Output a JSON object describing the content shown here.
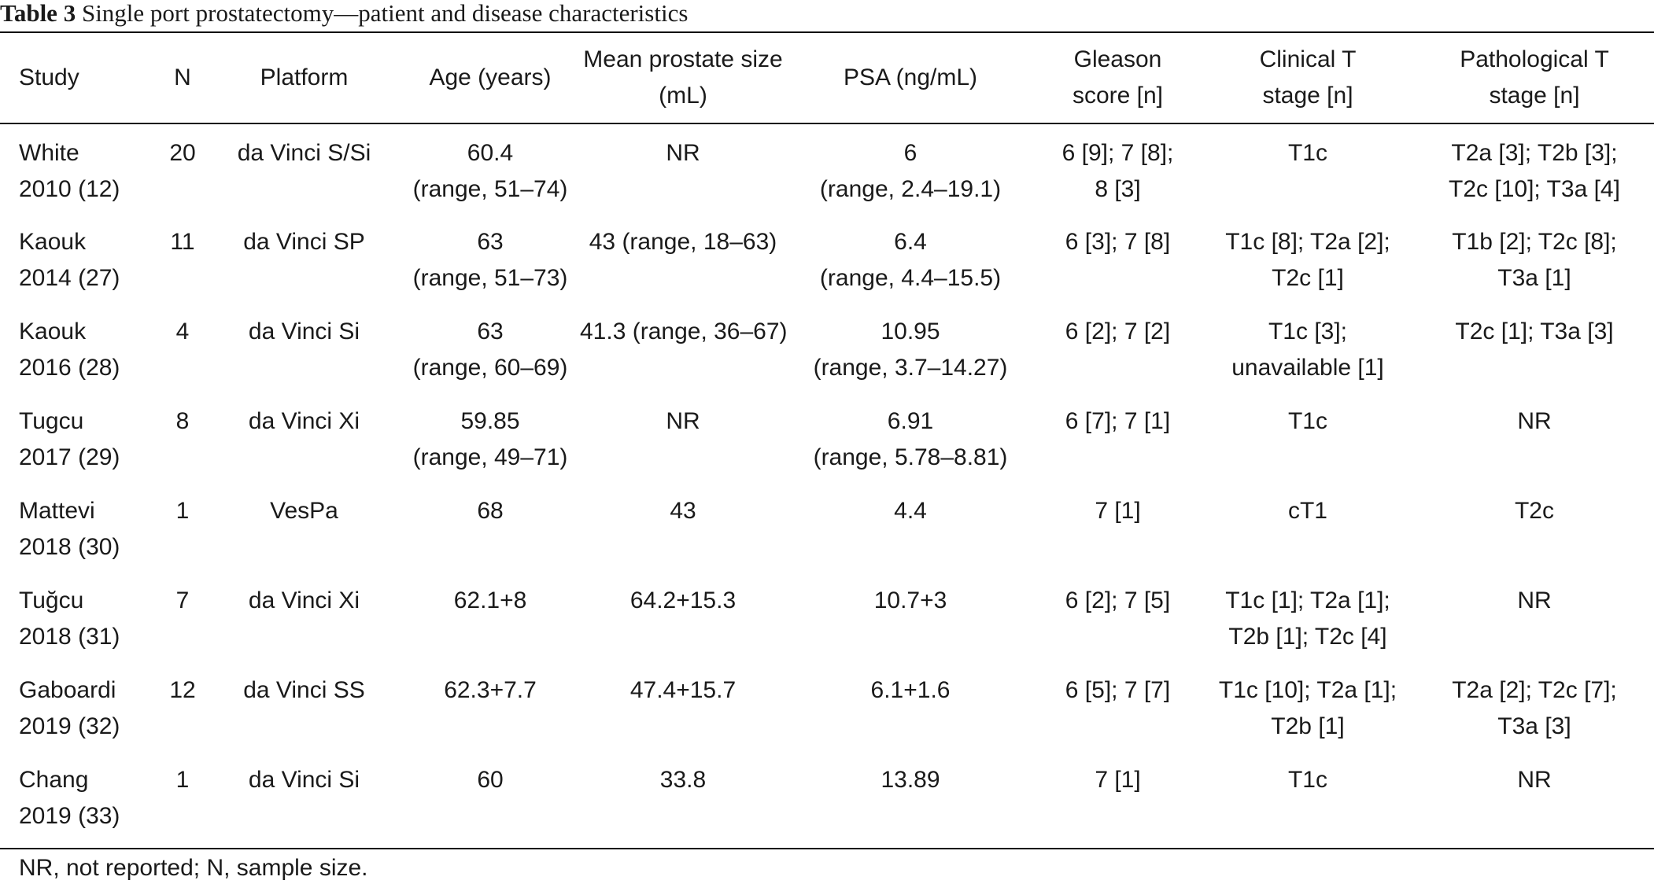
{
  "caption": {
    "label": "Table 3",
    "text": "Single port prostatectomy—patient and disease characteristics"
  },
  "headers": [
    [
      "Study"
    ],
    [
      "N"
    ],
    [
      "Platform"
    ],
    [
      "Age (years)"
    ],
    [
      "Mean prostate size",
      "(mL)"
    ],
    [
      "PSA (ng/mL)"
    ],
    [
      "Gleason",
      "score [n]"
    ],
    [
      "Clinical T",
      "stage [n]"
    ],
    [
      "Pathological T",
      "stage [n]"
    ]
  ],
  "rows": [
    [
      [
        "White",
        "2010 (12)"
      ],
      [
        "20"
      ],
      [
        "da Vinci S/Si"
      ],
      [
        "60.4",
        "(range, 51–74)"
      ],
      [
        "NR"
      ],
      [
        "6",
        "(range, 2.4–19.1)"
      ],
      [
        "6 [9]; 7 [8];",
        "8 [3]"
      ],
      [
        "T1c"
      ],
      [
        "T2a [3]; T2b [3];",
        "T2c [10]; T3a [4]"
      ]
    ],
    [
      [
        "Kaouk",
        "2014 (27)"
      ],
      [
        "11"
      ],
      [
        "da Vinci SP"
      ],
      [
        "63",
        "(range, 51–73)"
      ],
      [
        "43 (range, 18–63)"
      ],
      [
        "6.4",
        "(range, 4.4–15.5)"
      ],
      [
        "6 [3]; 7 [8]"
      ],
      [
        "T1c [8]; T2a [2];",
        "T2c [1]"
      ],
      [
        "T1b [2]; T2c [8];",
        "T3a [1]"
      ]
    ],
    [
      [
        "Kaouk",
        "2016 (28)"
      ],
      [
        "4"
      ],
      [
        "da Vinci Si"
      ],
      [
        "63",
        "(range, 60–69)"
      ],
      [
        "41.3 (range, 36–67)"
      ],
      [
        "10.95",
        "(range, 3.7–14.27)"
      ],
      [
        "6 [2]; 7 [2]"
      ],
      [
        "T1c [3];",
        "unavailable [1]"
      ],
      [
        "T2c [1]; T3a [3]"
      ]
    ],
    [
      [
        "Tugcu",
        "2017 (29)"
      ],
      [
        "8"
      ],
      [
        "da Vinci Xi"
      ],
      [
        "59.85",
        "(range, 49–71)"
      ],
      [
        "NR"
      ],
      [
        "6.91",
        "(range, 5.78–8.81)"
      ],
      [
        "6 [7]; 7 [1]"
      ],
      [
        "T1c"
      ],
      [
        "NR"
      ]
    ],
    [
      [
        "Mattevi",
        "2018 (30)"
      ],
      [
        "1"
      ],
      [
        "VesPa"
      ],
      [
        "68"
      ],
      [
        "43"
      ],
      [
        "4.4"
      ],
      [
        "7 [1]"
      ],
      [
        "cT1"
      ],
      [
        "T2c"
      ]
    ],
    [
      [
        "Tuğcu",
        "2018 (31)"
      ],
      [
        "7"
      ],
      [
        "da Vinci Xi"
      ],
      [
        "62.1+8"
      ],
      [
        "64.2+15.3"
      ],
      [
        "10.7+3"
      ],
      [
        "6 [2]; 7 [5]"
      ],
      [
        "T1c [1]; T2a [1];",
        "T2b [1]; T2c [4]"
      ],
      [
        "NR"
      ]
    ],
    [
      [
        "Gaboardi",
        "2019 (32)"
      ],
      [
        "12"
      ],
      [
        "da Vinci SS"
      ],
      [
        "62.3+7.7"
      ],
      [
        "47.4+15.7"
      ],
      [
        "6.1+1.6"
      ],
      [
        "6 [5]; 7 [7]"
      ],
      [
        "T1c [10]; T2a [1];",
        "T2b [1]"
      ],
      [
        "T2a [2]; T2c [7];",
        "T3a [3]"
      ]
    ],
    [
      [
        "Chang",
        "2019 (33)"
      ],
      [
        "1"
      ],
      [
        "da Vinci Si"
      ],
      [
        "60"
      ],
      [
        "33.8"
      ],
      [
        "13.89"
      ],
      [
        "7 [1]"
      ],
      [
        "T1c"
      ],
      [
        "NR"
      ]
    ]
  ],
  "footnote": "NR, not reported; N, sample size."
}
